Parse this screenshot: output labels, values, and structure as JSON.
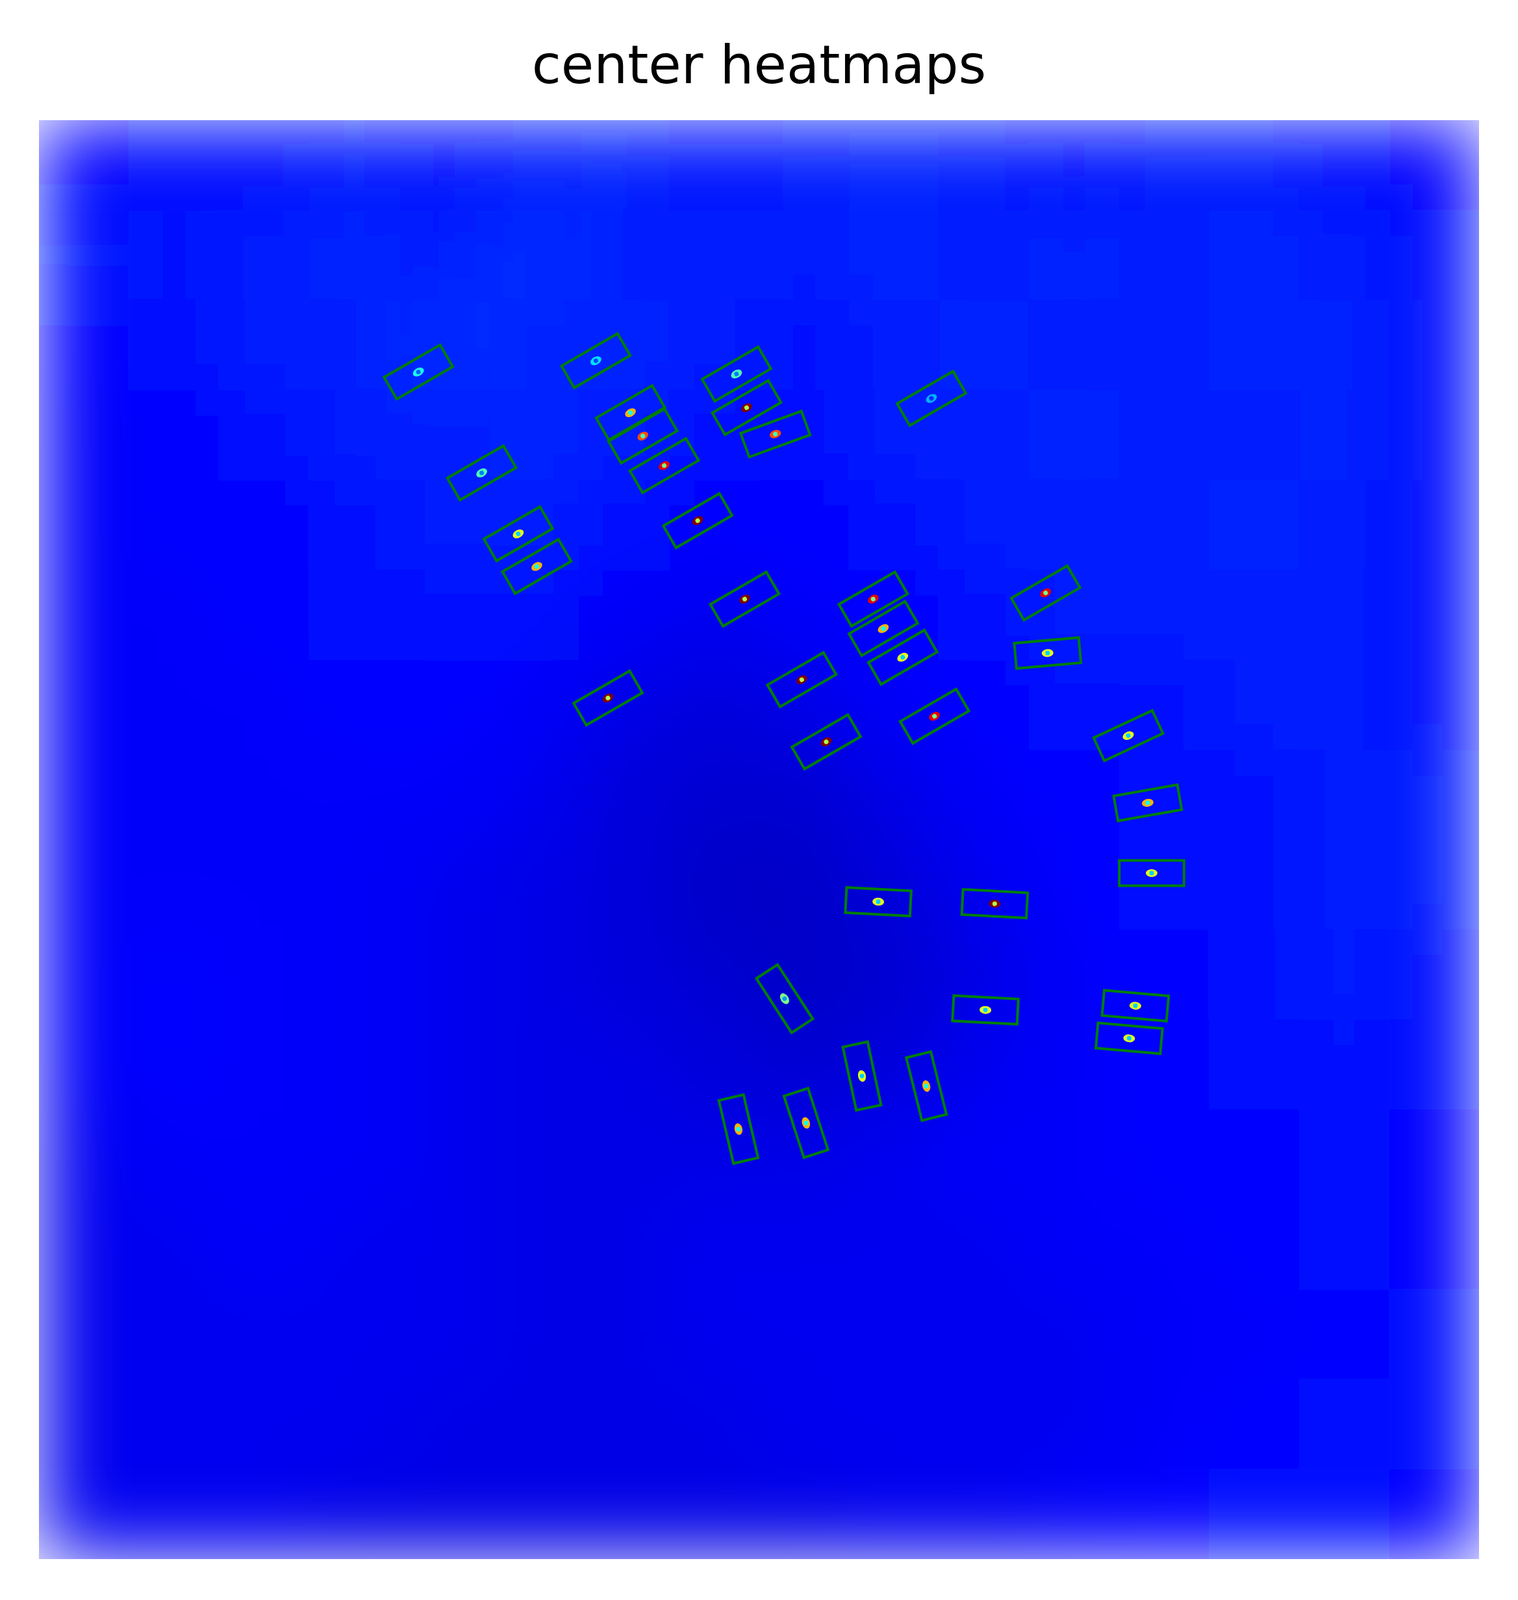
{
  "chart_data": {
    "type": "heatmap",
    "title": "center heatmaps",
    "xlim": [
      0,
      512
    ],
    "ylim": [
      512,
      0
    ],
    "zlim": [
      0,
      1
    ],
    "tick_labels": false,
    "color": "green",
    "cells": [
      [
        0.13,
        0.14,
        0.14,
        0.15,
        0.14,
        0.15,
        0.16,
        0.14,
        0.15,
        0.16,
        0.15,
        0.14,
        0.15,
        0.15,
        0.14,
        0.13
      ],
      [
        0.15,
        0.14,
        0.15,
        0.16,
        0.15,
        0.17,
        0.15,
        0.15,
        0.15,
        0.16,
        0.15,
        0.16,
        0.15,
        0.16,
        0.15,
        0.14
      ],
      [
        0.13,
        0.14,
        0.15,
        0.15,
        0.17,
        0.16,
        0.16,
        0.15,
        0.14,
        0.15,
        0.16,
        0.15,
        0.15,
        0.16,
        0.16,
        0.14
      ],
      [
        0.12,
        0.13,
        0.14,
        0.15,
        0.15,
        0.16,
        0.15,
        0.14,
        0.14,
        0.15,
        0.15,
        0.16,
        0.15,
        0.15,
        0.16,
        0.14
      ],
      [
        0.12,
        0.13,
        0.13,
        0.14,
        0.15,
        0.15,
        0.14,
        0.13,
        0.13,
        0.14,
        0.15,
        0.15,
        0.15,
        0.16,
        0.15,
        0.14
      ],
      [
        0.12,
        0.12,
        0.13,
        0.14,
        0.14,
        0.14,
        0.12,
        0.11,
        0.12,
        0.13,
        0.14,
        0.15,
        0.15,
        0.15,
        0.15,
        0.14
      ],
      [
        0.12,
        0.12,
        0.12,
        0.13,
        0.13,
        0.12,
        0.1,
        0.09,
        0.1,
        0.12,
        0.13,
        0.14,
        0.14,
        0.15,
        0.15,
        0.14
      ],
      [
        0.12,
        0.12,
        0.12,
        0.12,
        0.12,
        0.11,
        0.09,
        0.08,
        0.08,
        0.1,
        0.12,
        0.13,
        0.14,
        0.14,
        0.15,
        0.15
      ],
      [
        0.12,
        0.12,
        0.12,
        0.12,
        0.11,
        0.1,
        0.09,
        0.07,
        0.07,
        0.09,
        0.11,
        0.13,
        0.14,
        0.14,
        0.15,
        0.15
      ],
      [
        0.12,
        0.13,
        0.12,
        0.12,
        0.11,
        0.1,
        0.09,
        0.08,
        0.07,
        0.08,
        0.1,
        0.12,
        0.13,
        0.14,
        0.15,
        0.14
      ],
      [
        0.12,
        0.13,
        0.12,
        0.12,
        0.11,
        0.1,
        0.1,
        0.09,
        0.08,
        0.09,
        0.11,
        0.12,
        0.13,
        0.14,
        0.14,
        0.14
      ],
      [
        0.11,
        0.12,
        0.12,
        0.12,
        0.11,
        0.1,
        0.1,
        0.1,
        0.1,
        0.11,
        0.12,
        0.12,
        0.13,
        0.13,
        0.14,
        0.13
      ],
      [
        0.11,
        0.11,
        0.12,
        0.11,
        0.11,
        0.1,
        0.1,
        0.11,
        0.11,
        0.11,
        0.11,
        0.12,
        0.12,
        0.13,
        0.14,
        0.13
      ],
      [
        0.11,
        0.11,
        0.11,
        0.11,
        0.11,
        0.1,
        0.1,
        0.11,
        0.11,
        0.11,
        0.11,
        0.11,
        0.12,
        0.12,
        0.13,
        0.14
      ],
      [
        0.11,
        0.11,
        0.11,
        0.11,
        0.1,
        0.1,
        0.1,
        0.1,
        0.11,
        0.11,
        0.11,
        0.11,
        0.12,
        0.13,
        0.14,
        0.14
      ],
      [
        0.11,
        0.11,
        0.11,
        0.1,
        0.1,
        0.1,
        0.1,
        0.1,
        0.1,
        0.11,
        0.11,
        0.12,
        0.13,
        0.14,
        0.14,
        0.13
      ]
    ],
    "boxes": [
      {
        "cx": 134.9,
        "cy": 89.6,
        "w": 23,
        "h": 9,
        "angle": -30,
        "peak": 0.4
      },
      {
        "cx": 198.0,
        "cy": 85.6,
        "w": 23,
        "h": 9,
        "angle": -30,
        "peak": 0.35
      },
      {
        "cx": 248.0,
        "cy": 90.3,
        "w": 23,
        "h": 9,
        "angle": -30,
        "peak": 0.45
      },
      {
        "cx": 317.3,
        "cy": 99.0,
        "w": 23,
        "h": 9,
        "angle": -30,
        "peak": 0.3
      },
      {
        "cx": 210.3,
        "cy": 104.1,
        "w": 23,
        "h": 9,
        "angle": -30,
        "peak": 0.7
      },
      {
        "cx": 251.6,
        "cy": 102.3,
        "w": 23,
        "h": 9,
        "angle": -30,
        "peak": 1.0
      },
      {
        "cx": 214.7,
        "cy": 112.4,
        "w": 23,
        "h": 9,
        "angle": -30,
        "peak": 0.8
      },
      {
        "cx": 261.8,
        "cy": 111.7,
        "w": 23,
        "h": 9,
        "angle": -20,
        "peak": 0.8
      },
      {
        "cx": 222.3,
        "cy": 122.9,
        "w": 23,
        "h": 9,
        "angle": -30,
        "peak": 0.9
      },
      {
        "cx": 157.4,
        "cy": 125.5,
        "w": 23,
        "h": 9,
        "angle": -30,
        "peak": 0.45
      },
      {
        "cx": 234.2,
        "cy": 142.5,
        "w": 23,
        "h": 9,
        "angle": -30,
        "peak": 1.0
      },
      {
        "cx": 170.4,
        "cy": 147.2,
        "w": 23,
        "h": 9,
        "angle": -30,
        "peak": 0.6
      },
      {
        "cx": 177.0,
        "cy": 158.8,
        "w": 23,
        "h": 9,
        "angle": -30,
        "peak": 0.7
      },
      {
        "cx": 250.9,
        "cy": 170.4,
        "w": 23,
        "h": 9,
        "angle": -30,
        "peak": 1.0
      },
      {
        "cx": 296.6,
        "cy": 170.4,
        "w": 23,
        "h": 9,
        "angle": -30,
        "peak": 0.9
      },
      {
        "cx": 300.2,
        "cy": 180.9,
        "w": 23,
        "h": 9,
        "angle": -30,
        "peak": 0.7
      },
      {
        "cx": 307.1,
        "cy": 191.1,
        "w": 23,
        "h": 9,
        "angle": -30,
        "peak": 0.6
      },
      {
        "cx": 357.9,
        "cy": 168.2,
        "w": 23,
        "h": 9,
        "angle": -30,
        "peak": 0.9
      },
      {
        "cx": 358.6,
        "cy": 189.6,
        "w": 23,
        "h": 9,
        "angle": -5,
        "peak": 0.6
      },
      {
        "cx": 202.3,
        "cy": 205.6,
        "w": 23,
        "h": 9,
        "angle": -30,
        "peak": 1.0
      },
      {
        "cx": 271.2,
        "cy": 199.1,
        "w": 23,
        "h": 9,
        "angle": -30,
        "peak": 1.0
      },
      {
        "cx": 318.4,
        "cy": 212.1,
        "w": 23,
        "h": 9,
        "angle": -30,
        "peak": 0.9
      },
      {
        "cx": 279.9,
        "cy": 221.2,
        "w": 23,
        "h": 9,
        "angle": -30,
        "peak": 1.0
      },
      {
        "cx": 387.3,
        "cy": 219.0,
        "w": 23,
        "h": 9,
        "angle": -25,
        "peak": 0.6
      },
      {
        "cx": 394.2,
        "cy": 242.9,
        "w": 23,
        "h": 9,
        "angle": -10,
        "peak": 0.7
      },
      {
        "cx": 395.6,
        "cy": 267.9,
        "w": 23,
        "h": 9,
        "angle": 0,
        "peak": 0.6
      },
      {
        "cx": 298.4,
        "cy": 278.1,
        "w": 23,
        "h": 9,
        "angle": 3,
        "peak": 0.6
      },
      {
        "cx": 339.8,
        "cy": 278.8,
        "w": 23,
        "h": 9,
        "angle": 3,
        "peak": 1.0
      },
      {
        "cx": 265.1,
        "cy": 312.6,
        "w": 23,
        "h": 9,
        "angle": 57,
        "peak": 0.5
      },
      {
        "cx": 336.5,
        "cy": 316.6,
        "w": 23,
        "h": 9,
        "angle": 3,
        "peak": 0.6
      },
      {
        "cx": 389.8,
        "cy": 315.1,
        "w": 23,
        "h": 9,
        "angle": 5,
        "peak": 0.6
      },
      {
        "cx": 387.6,
        "cy": 326.7,
        "w": 23,
        "h": 9,
        "angle": 5,
        "peak": 0.6
      },
      {
        "cx": 292.6,
        "cy": 340.1,
        "w": 23,
        "h": 9,
        "angle": 78,
        "peak": 0.6
      },
      {
        "cx": 315.5,
        "cy": 343.7,
        "w": 23,
        "h": 9,
        "angle": 76,
        "peak": 0.7
      },
      {
        "cx": 248.7,
        "cy": 359.0,
        "w": 23,
        "h": 9,
        "angle": 77,
        "peak": 0.7
      },
      {
        "cx": 272.7,
        "cy": 356.8,
        "w": 23,
        "h": 9,
        "angle": 72,
        "peak": 0.7
      }
    ]
  }
}
